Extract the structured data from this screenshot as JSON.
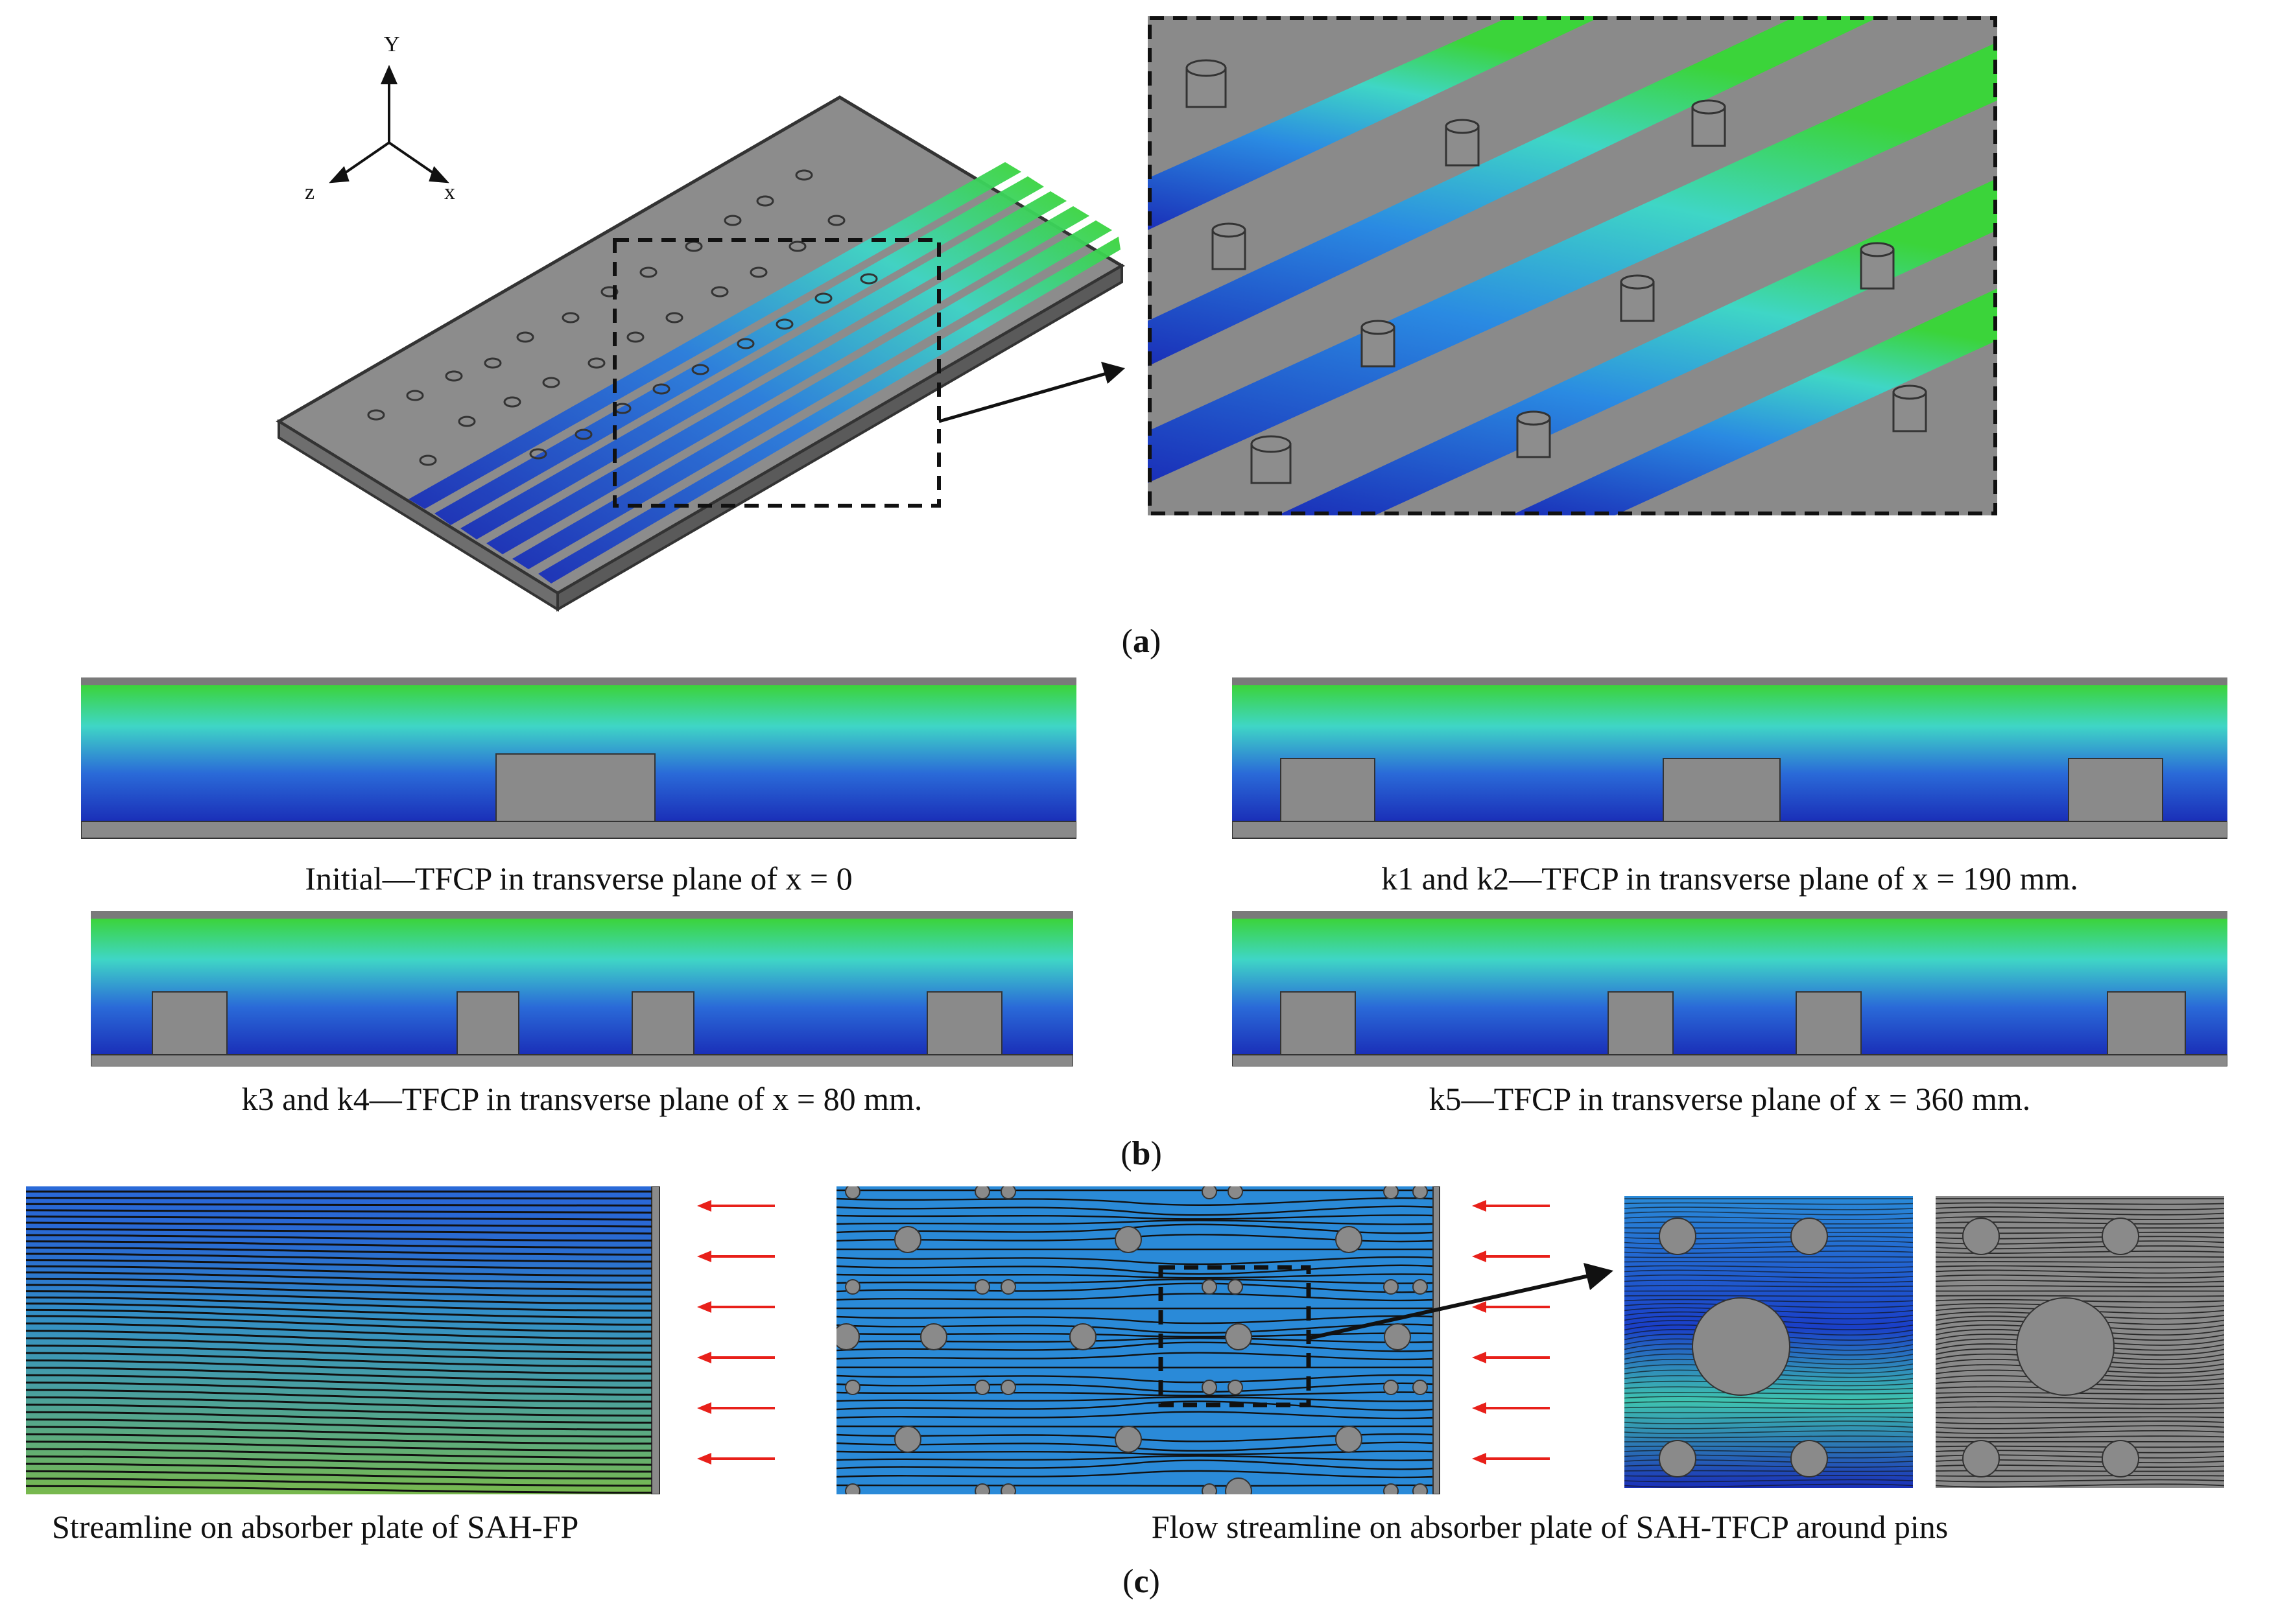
{
  "figure": {
    "panel_a": {
      "label": "a",
      "axes": {
        "y": "Y",
        "z": "z",
        "x": "x"
      }
    },
    "panel_b": {
      "label": "b",
      "captions": [
        "Initial—TFCP in transverse plane of x = 0",
        "k1 and k2—TFCP in transverse plane of x = 190 mm.",
        "k3 and k4—TFCP in transverse plane of x = 80 mm.",
        "k5—TFCP in transverse plane of x = 360 mm."
      ]
    },
    "panel_c": {
      "label": "c",
      "captions": [
        "Streamline on absorber plate of SAH-FP",
        "Flow streamline on absorber plate of SAH-TFCP around pins"
      ]
    }
  },
  "colors": {
    "dark_blue": "#1a2fb8",
    "mid_blue": "#2a6ad8",
    "cyan": "#3fd6c6",
    "green": "#3bd43a",
    "gray": "#808080",
    "arrow_red": "#e8201a"
  }
}
